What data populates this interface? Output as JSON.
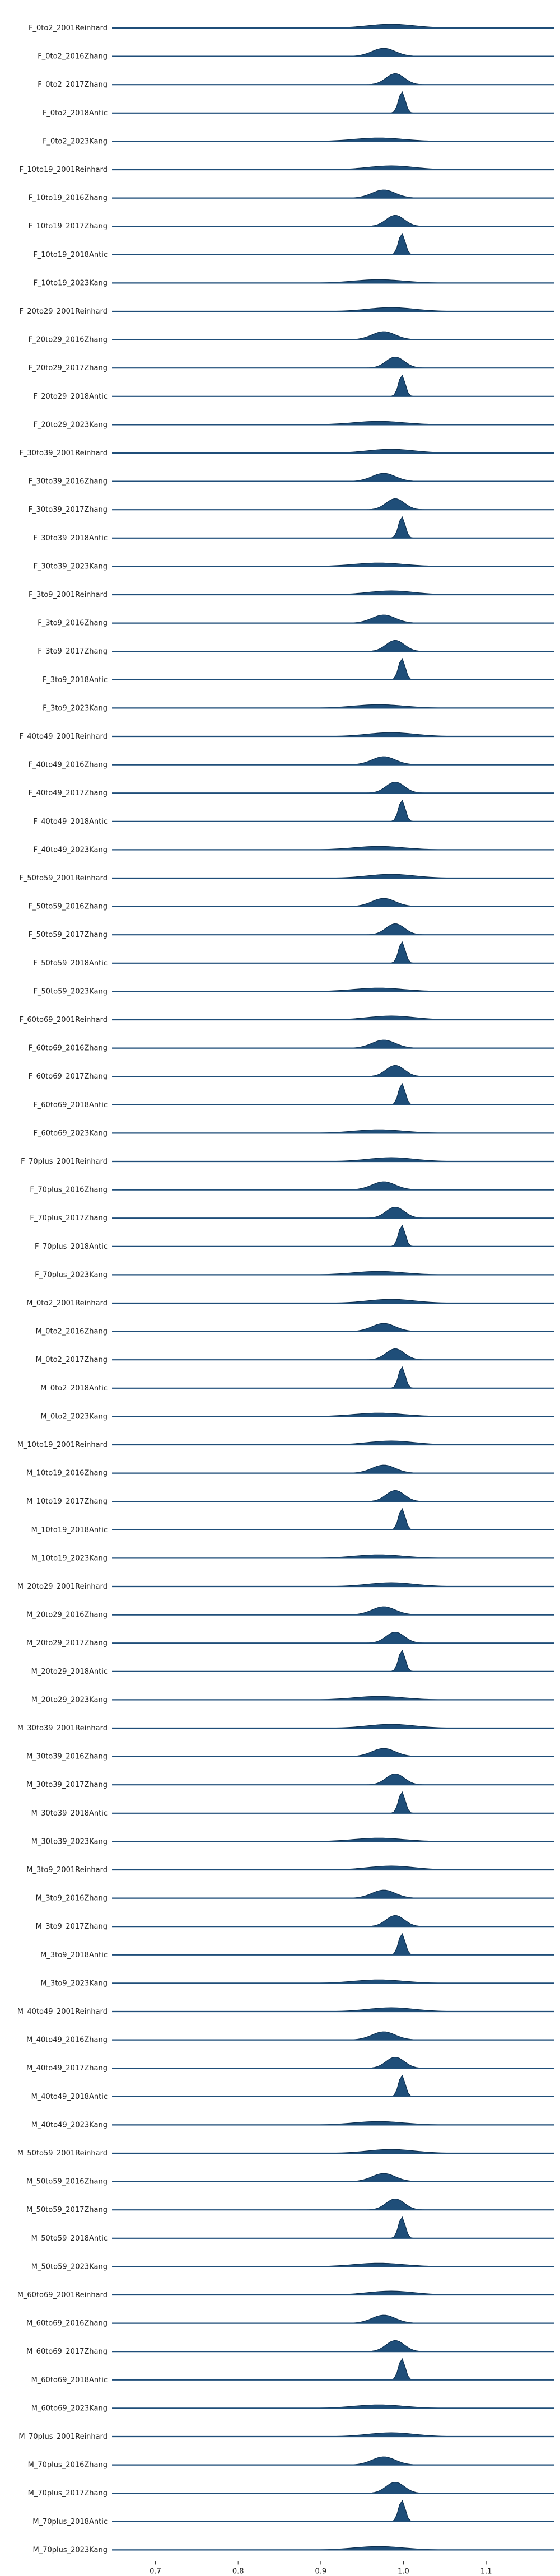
{
  "chart_data": {
    "type": "ridgeline",
    "title": "",
    "xlabel": "",
    "ylabel": "",
    "xlim": [
      0.6475,
      1.1825
    ],
    "x_ticks": [
      {
        "value": 0.7,
        "label": "0.7"
      },
      {
        "value": 0.8,
        "label": "0.8"
      },
      {
        "value": 0.9,
        "label": "0.9"
      },
      {
        "value": 1.0,
        "label": "1.0"
      },
      {
        "value": 1.1,
        "label": "1.1"
      }
    ],
    "series_style": {
      "fill_color": "#1f4e79",
      "line_color": "#0d2f4f"
    },
    "density_profiles": {
      "Reinhard": {
        "center": 0.985,
        "spread": 0.028,
        "peak": 0.18
      },
      "Zhang2016": {
        "center": 0.976,
        "spread": 0.014,
        "peak": 0.38
      },
      "Zhang2017": {
        "center": 0.99,
        "spread": 0.011,
        "peak": 0.52
      },
      "Antic": {
        "center": 0.998,
        "spread": 0.004,
        "peak": 1.0
      },
      "Kang": {
        "center": 0.97,
        "spread": 0.03,
        "peak": 0.16
      }
    },
    "rows": [
      {
        "label": "F_0to2_2001Reinhard",
        "profile": "Reinhard"
      },
      {
        "label": "F_0to2_2016Zhang",
        "profile": "Zhang2016"
      },
      {
        "label": "F_0to2_2017Zhang",
        "profile": "Zhang2017"
      },
      {
        "label": "F_0to2_2018Antic",
        "profile": "Antic"
      },
      {
        "label": "F_0to2_2023Kang",
        "profile": "Kang"
      },
      {
        "label": "F_10to19_2001Reinhard",
        "profile": "Reinhard"
      },
      {
        "label": "F_10to19_2016Zhang",
        "profile": "Zhang2016"
      },
      {
        "label": "F_10to19_2017Zhang",
        "profile": "Zhang2017"
      },
      {
        "label": "F_10to19_2018Antic",
        "profile": "Antic"
      },
      {
        "label": "F_10to19_2023Kang",
        "profile": "Kang"
      },
      {
        "label": "F_20to29_2001Reinhard",
        "profile": "Reinhard"
      },
      {
        "label": "F_20to29_2016Zhang",
        "profile": "Zhang2016"
      },
      {
        "label": "F_20to29_2017Zhang",
        "profile": "Zhang2017"
      },
      {
        "label": "F_20to29_2018Antic",
        "profile": "Antic"
      },
      {
        "label": "F_20to29_2023Kang",
        "profile": "Kang"
      },
      {
        "label": "F_30to39_2001Reinhard",
        "profile": "Reinhard"
      },
      {
        "label": "F_30to39_2016Zhang",
        "profile": "Zhang2016"
      },
      {
        "label": "F_30to39_2017Zhang",
        "profile": "Zhang2017"
      },
      {
        "label": "F_30to39_2018Antic",
        "profile": "Antic"
      },
      {
        "label": "F_30to39_2023Kang",
        "profile": "Kang"
      },
      {
        "label": "F_3to9_2001Reinhard",
        "profile": "Reinhard"
      },
      {
        "label": "F_3to9_2016Zhang",
        "profile": "Zhang2016"
      },
      {
        "label": "F_3to9_2017Zhang",
        "profile": "Zhang2017"
      },
      {
        "label": "F_3to9_2018Antic",
        "profile": "Antic"
      },
      {
        "label": "F_3to9_2023Kang",
        "profile": "Kang"
      },
      {
        "label": "F_40to49_2001Reinhard",
        "profile": "Reinhard"
      },
      {
        "label": "F_40to49_2016Zhang",
        "profile": "Zhang2016"
      },
      {
        "label": "F_40to49_2017Zhang",
        "profile": "Zhang2017"
      },
      {
        "label": "F_40to49_2018Antic",
        "profile": "Antic"
      },
      {
        "label": "F_40to49_2023Kang",
        "profile": "Kang"
      },
      {
        "label": "F_50to59_2001Reinhard",
        "profile": "Reinhard"
      },
      {
        "label": "F_50to59_2016Zhang",
        "profile": "Zhang2016"
      },
      {
        "label": "F_50to59_2017Zhang",
        "profile": "Zhang2017"
      },
      {
        "label": "F_50to59_2018Antic",
        "profile": "Antic"
      },
      {
        "label": "F_50to59_2023Kang",
        "profile": "Kang"
      },
      {
        "label": "F_60to69_2001Reinhard",
        "profile": "Reinhard"
      },
      {
        "label": "F_60to69_2016Zhang",
        "profile": "Zhang2016"
      },
      {
        "label": "F_60to69_2017Zhang",
        "profile": "Zhang2017"
      },
      {
        "label": "F_60to69_2018Antic",
        "profile": "Antic"
      },
      {
        "label": "F_60to69_2023Kang",
        "profile": "Kang"
      },
      {
        "label": "F_70plus_2001Reinhard",
        "profile": "Reinhard"
      },
      {
        "label": "F_70plus_2016Zhang",
        "profile": "Zhang2016"
      },
      {
        "label": "F_70plus_2017Zhang",
        "profile": "Zhang2017"
      },
      {
        "label": "F_70plus_2018Antic",
        "profile": "Antic"
      },
      {
        "label": "F_70plus_2023Kang",
        "profile": "Kang"
      },
      {
        "label": "M_0to2_2001Reinhard",
        "profile": "Reinhard"
      },
      {
        "label": "M_0to2_2016Zhang",
        "profile": "Zhang2016"
      },
      {
        "label": "M_0to2_2017Zhang",
        "profile": "Zhang2017"
      },
      {
        "label": "M_0to2_2018Antic",
        "profile": "Antic"
      },
      {
        "label": "M_0to2_2023Kang",
        "profile": "Kang"
      },
      {
        "label": "M_10to19_2001Reinhard",
        "profile": "Reinhard"
      },
      {
        "label": "M_10to19_2016Zhang",
        "profile": "Zhang2016"
      },
      {
        "label": "M_10to19_2017Zhang",
        "profile": "Zhang2017"
      },
      {
        "label": "M_10to19_2018Antic",
        "profile": "Antic"
      },
      {
        "label": "M_10to19_2023Kang",
        "profile": "Kang"
      },
      {
        "label": "M_20to29_2001Reinhard",
        "profile": "Reinhard"
      },
      {
        "label": "M_20to29_2016Zhang",
        "profile": "Zhang2016"
      },
      {
        "label": "M_20to29_2017Zhang",
        "profile": "Zhang2017"
      },
      {
        "label": "M_20to29_2018Antic",
        "profile": "Antic"
      },
      {
        "label": "M_20to29_2023Kang",
        "profile": "Kang"
      },
      {
        "label": "M_30to39_2001Reinhard",
        "profile": "Reinhard"
      },
      {
        "label": "M_30to39_2016Zhang",
        "profile": "Zhang2016"
      },
      {
        "label": "M_30to39_2017Zhang",
        "profile": "Zhang2017"
      },
      {
        "label": "M_30to39_2018Antic",
        "profile": "Antic"
      },
      {
        "label": "M_30to39_2023Kang",
        "profile": "Kang"
      },
      {
        "label": "M_3to9_2001Reinhard",
        "profile": "Reinhard"
      },
      {
        "label": "M_3to9_2016Zhang",
        "profile": "Zhang2016"
      },
      {
        "label": "M_3to9_2017Zhang",
        "profile": "Zhang2017"
      },
      {
        "label": "M_3to9_2018Antic",
        "profile": "Antic"
      },
      {
        "label": "M_3to9_2023Kang",
        "profile": "Kang"
      },
      {
        "label": "M_40to49_2001Reinhard",
        "profile": "Reinhard"
      },
      {
        "label": "M_40to49_2016Zhang",
        "profile": "Zhang2016"
      },
      {
        "label": "M_40to49_2017Zhang",
        "profile": "Zhang2017"
      },
      {
        "label": "M_40to49_2018Antic",
        "profile": "Antic"
      },
      {
        "label": "M_40to49_2023Kang",
        "profile": "Kang"
      },
      {
        "label": "M_50to59_2001Reinhard",
        "profile": "Reinhard"
      },
      {
        "label": "M_50to59_2016Zhang",
        "profile": "Zhang2016"
      },
      {
        "label": "M_50to59_2017Zhang",
        "profile": "Zhang2017"
      },
      {
        "label": "M_50to59_2018Antic",
        "profile": "Antic"
      },
      {
        "label": "M_50to59_2023Kang",
        "profile": "Kang"
      },
      {
        "label": "M_60to69_2001Reinhard",
        "profile": "Reinhard"
      },
      {
        "label": "M_60to69_2016Zhang",
        "profile": "Zhang2016"
      },
      {
        "label": "M_60to69_2017Zhang",
        "profile": "Zhang2017"
      },
      {
        "label": "M_60to69_2018Antic",
        "profile": "Antic"
      },
      {
        "label": "M_60to69_2023Kang",
        "profile": "Kang"
      },
      {
        "label": "M_70plus_2001Reinhard",
        "profile": "Reinhard"
      },
      {
        "label": "M_70plus_2016Zhang",
        "profile": "Zhang2016"
      },
      {
        "label": "M_70plus_2017Zhang",
        "profile": "Zhang2017"
      },
      {
        "label": "M_70plus_2018Antic",
        "profile": "Antic"
      },
      {
        "label": "M_70plus_2023Kang",
        "profile": "Kang"
      }
    ]
  }
}
